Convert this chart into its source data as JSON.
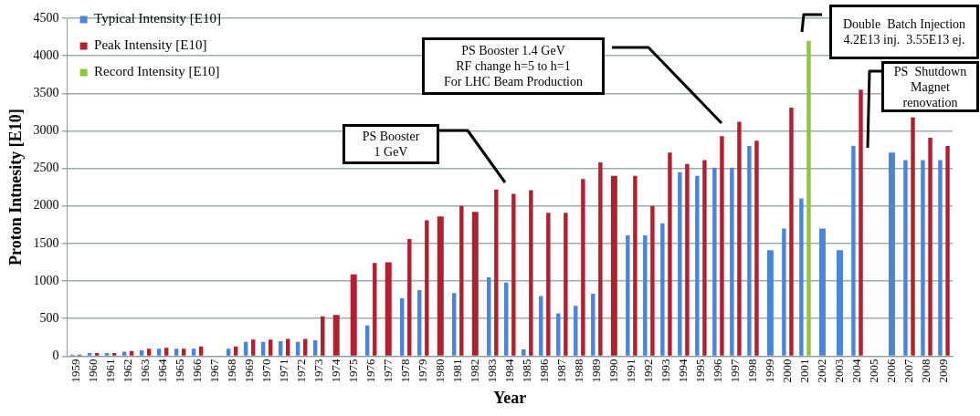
{
  "chart_data": {
    "type": "bar",
    "xlabel": "Year",
    "ylabel": "Proton Intnesity [E10]",
    "categories": [
      "1959",
      "1960",
      "1961",
      "1962",
      "1963",
      "1964",
      "1965",
      "1966",
      "1967",
      "1968",
      "1969",
      "1970",
      "1971",
      "1972",
      "1973",
      "1974",
      "1975",
      "1976",
      "1977",
      "1978",
      "1979",
      "1980",
      "1981",
      "1982",
      "1983",
      "1984",
      "1985",
      "1986",
      "1987",
      "1988",
      "1989",
      "1990",
      "1991",
      "1992",
      "1993",
      "1994",
      "1995",
      "1996",
      "1997",
      "1998",
      "1999",
      "2000",
      "2001",
      "2002",
      "2003",
      "2004",
      "2005",
      "2006",
      "2007",
      "2008",
      "2009"
    ],
    "series": [
      {
        "name": "Typical Intensity [E10]",
        "color": "#4a86d8",
        "values": [
          20,
          40,
          40,
          60,
          80,
          100,
          100,
          100,
          null,
          100,
          190,
          190,
          200,
          190,
          210,
          null,
          null,
          410,
          null,
          770,
          880,
          null,
          840,
          null,
          1050,
          980,
          90,
          800,
          570,
          670,
          830,
          null,
          1610,
          1610,
          1770,
          2450,
          2400,
          2510,
          2510,
          2800,
          1410,
          1700,
          2100,
          1700,
          1410,
          2800,
          null,
          2710,
          2610,
          2610,
          2610
        ]
      },
      {
        "name": "Peak Intensity [E10]",
        "color": "#b02030",
        "values": [
          20,
          40,
          40,
          70,
          100,
          110,
          100,
          130,
          null,
          130,
          220,
          220,
          230,
          230,
          530,
          550,
          1090,
          1240,
          1250,
          1560,
          1810,
          1860,
          2000,
          1920,
          2220,
          2160,
          2210,
          1910,
          1910,
          2360,
          2580,
          2400,
          2400,
          2000,
          2710,
          2560,
          2610,
          2930,
          3120,
          2870,
          null,
          3310,
          null,
          null,
          null,
          3550,
          null,
          null,
          3180,
          2910,
          2800
        ]
      },
      {
        "name": "Record Intensity [E10]",
        "color": "#8cc63f",
        "values": [
          null,
          null,
          null,
          null,
          null,
          null,
          null,
          null,
          null,
          null,
          null,
          null,
          null,
          null,
          null,
          null,
          null,
          null,
          null,
          null,
          null,
          null,
          null,
          null,
          null,
          null,
          null,
          null,
          null,
          null,
          null,
          null,
          null,
          null,
          null,
          null,
          null,
          null,
          null,
          null,
          null,
          null,
          4200,
          null,
          null,
          null,
          null,
          null,
          null,
          null,
          null
        ]
      }
    ],
    "ylim": [
      0,
      4500
    ],
    "yticks": [
      0,
      500,
      1000,
      1500,
      2000,
      2500,
      3000,
      3500,
      4000,
      4500
    ],
    "grid": "y",
    "legend": "top left",
    "annotations": [
      "PS Booster\n1 GeV",
      "PS Booster 1.4 GeV\nRF change h=5 to h=1\nFor LHC Beam Production",
      "Double  Batch Injection\n4.2E13 inj.  3.55E13 ej.",
      "PS  Shutdown\nMagnet\nrenovation"
    ]
  }
}
